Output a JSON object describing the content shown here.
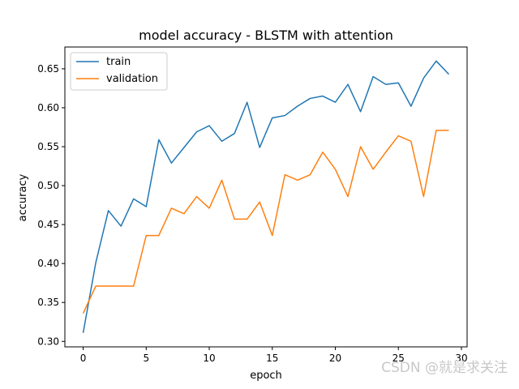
{
  "chart_data": {
    "type": "line",
    "title": "model accuracy - BLSTM with attention",
    "xlabel": "epoch",
    "ylabel": "accuracy",
    "xlim": [
      -1.45,
      30.45
    ],
    "ylim": [
      0.293,
      0.678
    ],
    "x_ticks": [
      0,
      5,
      10,
      15,
      20,
      25,
      30
    ],
    "y_ticks": [
      0.3,
      0.35,
      0.4,
      0.45,
      0.5,
      0.55,
      0.6,
      0.65
    ],
    "y_tick_labels": [
      "0.30",
      "0.35",
      "0.40",
      "0.45",
      "0.50",
      "0.55",
      "0.60",
      "0.65"
    ],
    "grid": false,
    "legend_position": "upper-left",
    "x": [
      0,
      1,
      2,
      3,
      4,
      5,
      6,
      7,
      8,
      9,
      10,
      11,
      12,
      13,
      14,
      15,
      16,
      17,
      18,
      19,
      20,
      21,
      22,
      23,
      24,
      25,
      26,
      27,
      28,
      29
    ],
    "series": [
      {
        "name": "train",
        "color": "#1f77b4",
        "values": [
          0.311,
          0.401,
          0.468,
          0.448,
          0.483,
          0.473,
          0.559,
          0.529,
          0.549,
          0.569,
          0.577,
          0.557,
          0.567,
          0.607,
          0.549,
          0.587,
          0.59,
          0.602,
          0.612,
          0.615,
          0.607,
          0.63,
          0.595,
          0.64,
          0.63,
          0.632,
          0.602,
          0.638,
          0.66,
          0.643
        ]
      },
      {
        "name": "validation",
        "color": "#ff7f0e",
        "values": [
          0.336,
          0.371,
          0.371,
          0.371,
          0.371,
          0.436,
          0.436,
          0.471,
          0.464,
          0.486,
          0.471,
          0.507,
          0.457,
          0.457,
          0.479,
          0.436,
          0.514,
          0.507,
          0.514,
          0.543,
          0.521,
          0.486,
          0.55,
          0.521,
          0.543,
          0.564,
          0.557,
          0.486,
          0.571,
          0.571
        ]
      }
    ]
  },
  "watermark": "CSDN @就是求关注"
}
